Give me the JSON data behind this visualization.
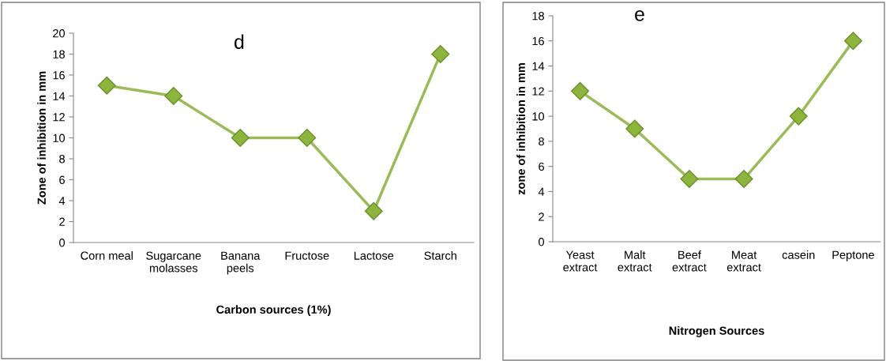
{
  "chart_data": [
    {
      "type": "line",
      "title": "d",
      "xlabel": "Carbon sources (1%)",
      "ylabel": "Zone of inhibition in mm",
      "categories": [
        "Corn meal",
        "Sugarcane\nmolasses",
        "Banana\npeels",
        "Fructose",
        "Lactose",
        "Starch"
      ],
      "series": [
        {
          "color": "#9bbb59",
          "values": [
            15,
            14,
            10,
            10,
            3,
            18
          ]
        }
      ],
      "ylim": [
        0,
        20
      ],
      "yticks": [
        0,
        2,
        4,
        6,
        8,
        10,
        12,
        14,
        16,
        18,
        20
      ],
      "marker": "diamond",
      "line_style": "solid",
      "grid": false,
      "legend": false
    },
    {
      "type": "line",
      "title": "e",
      "xlabel": "Nitrogen Sources",
      "ylabel": "zone of inhibition in mm",
      "categories": [
        "Yeast\nextract",
        "Malt\nextract",
        "Beef\nextract",
        "Meat\nextract",
        "casein",
        "Peptone"
      ],
      "series": [
        {
          "color": "#9bbb59",
          "values": [
            12,
            9,
            5,
            5,
            10,
            16
          ]
        }
      ],
      "ylim": [
        0,
        18
      ],
      "yticks": [
        0,
        2,
        4,
        6,
        8,
        10,
        12,
        14,
        16,
        18
      ],
      "marker": "diamond",
      "line_style": "solid",
      "grid": false,
      "legend": false
    }
  ]
}
